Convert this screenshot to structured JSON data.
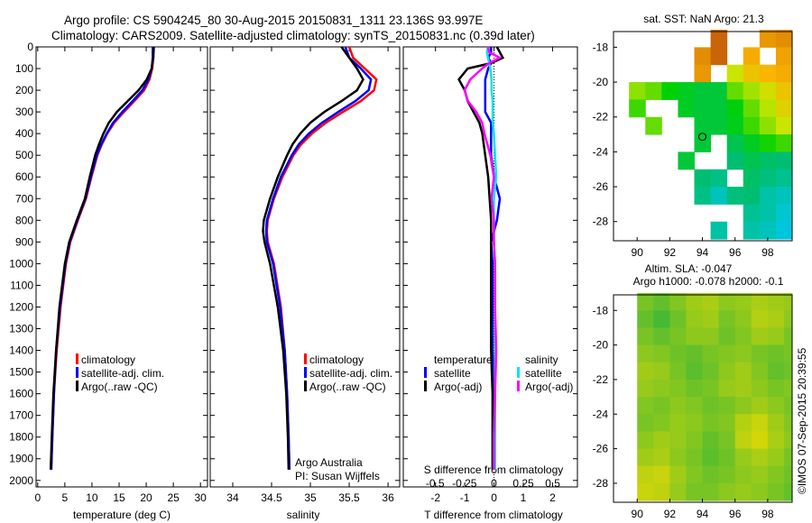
{
  "header": {
    "line1": "Argo profile: CS 5904245_80 30-Aug-2015 20150831_1311 23.136S 93.997E",
    "line2": "Climatology: CARS2009. Satellite-adjusted climatology: synTS_20150831.nc (0.39d later)"
  },
  "colors": {
    "climatology": "#ff0000",
    "satellite": "#0000ff",
    "argo": "#000000",
    "sal_satellite": "#00e5ee",
    "sal_argo": "#ff00ff"
  },
  "chart_data": [
    {
      "type": "line",
      "xlabel": "temperature (deg C)",
      "ylabel": "",
      "xlim": [
        -0.3,
        31.3
      ],
      "ylim": [
        2030,
        0
      ],
      "xticks": [
        0,
        5,
        10,
        15,
        20,
        25,
        30
      ],
      "yticks": [
        0,
        100,
        200,
        300,
        400,
        500,
        600,
        700,
        800,
        900,
        1000,
        1100,
        1200,
        1300,
        1400,
        1500,
        1600,
        1700,
        1800,
        1900,
        2000
      ],
      "depth": [
        0,
        50,
        100,
        150,
        200,
        250,
        300,
        350,
        400,
        450,
        500,
        600,
        700,
        800,
        900,
        1000,
        1200,
        1400,
        1600,
        1800,
        1950
      ],
      "series": [
        {
          "name": "climatology",
          "color": "#ff0000",
          "values": [
            21.3,
            21.3,
            21.1,
            20.6,
            19.6,
            17.8,
            15.9,
            14.1,
            12.8,
            11.8,
            11.0,
            9.9,
            8.9,
            7.4,
            6.0,
            5.2,
            4.2,
            3.5,
            3.0,
            2.7,
            2.5
          ]
        },
        {
          "name": "satellite-adj. clim.",
          "color": "#0000ff",
          "values": [
            21.2,
            21.2,
            21.0,
            20.4,
            19.3,
            17.5,
            15.6,
            13.9,
            12.7,
            11.7,
            10.9,
            9.8,
            8.8,
            7.3,
            5.9,
            5.1,
            4.1,
            3.4,
            3.0,
            2.7,
            2.5
          ]
        },
        {
          "name": "Argo(..raw -QC)",
          "color": "#000000",
          "values": [
            21.4,
            21.3,
            21.0,
            20.1,
            18.6,
            16.6,
            14.6,
            13.1,
            12.1,
            11.3,
            10.6,
            9.6,
            8.7,
            7.2,
            5.8,
            5.0,
            4.0,
            3.4,
            2.9,
            2.6,
            2.4
          ]
        }
      ]
    },
    {
      "type": "line",
      "xlabel": "salinity",
      "xlim": [
        33.71,
        36.15
      ],
      "ylim": [
        2030,
        0
      ],
      "xticks": [
        34,
        34.5,
        35,
        35.5,
        36
      ],
      "depth": [
        0,
        50,
        100,
        150,
        200,
        250,
        300,
        350,
        400,
        450,
        500,
        600,
        700,
        800,
        850,
        900,
        1000,
        1200,
        1400,
        1600,
        1800,
        1950
      ],
      "series": [
        {
          "name": "climatology",
          "color": "#ff0000",
          "values": [
            35.5,
            35.55,
            35.7,
            35.85,
            35.82,
            35.65,
            35.42,
            35.2,
            35.02,
            34.88,
            34.78,
            34.64,
            34.53,
            34.45,
            34.44,
            34.45,
            34.53,
            34.62,
            34.67,
            34.7,
            34.72,
            34.73
          ]
        },
        {
          "name": "satellite-adj. clim.",
          "color": "#0000ff",
          "values": [
            35.45,
            35.5,
            35.65,
            35.78,
            35.75,
            35.58,
            35.36,
            35.15,
            34.98,
            34.85,
            34.76,
            34.62,
            34.52,
            34.44,
            34.43,
            34.44,
            34.52,
            34.61,
            34.67,
            34.7,
            34.72,
            34.73
          ]
        },
        {
          "name": "Argo(..raw -QC)",
          "color": "#000000",
          "values": [
            35.4,
            35.5,
            35.6,
            35.68,
            35.6,
            35.4,
            35.18,
            35.0,
            34.87,
            34.77,
            34.7,
            34.58,
            34.48,
            34.4,
            34.39,
            34.41,
            34.48,
            34.58,
            34.65,
            34.69,
            34.71,
            34.72
          ]
        }
      ],
      "notes": [
        "Argo Australia",
        "PI: Susan Wijffels"
      ]
    },
    {
      "type": "line",
      "xlabel": "T difference from climatology",
      "x2label": "S difference from climatology",
      "xlim": [
        -3.1,
        2.85
      ],
      "x2lim": [
        -0.77,
        0.71
      ],
      "ylim": [
        2030,
        0
      ],
      "xticks": [
        -2,
        -1,
        0,
        1,
        2
      ],
      "x2ticks": [
        "-0.5",
        "-0.25",
        "0",
        "0.25",
        "0.5"
      ],
      "depth": [
        0,
        25,
        50,
        75,
        100,
        150,
        200,
        250,
        300,
        350,
        400,
        500,
        600,
        700,
        800,
        900,
        1000,
        1200,
        1400,
        1600,
        1800,
        1950
      ],
      "legend_titles": [
        "temperature",
        "salinity"
      ],
      "series": [
        {
          "name": "satellite",
          "group": "temperature",
          "axis": "T",
          "color": "#0000ff",
          "values": [
            -0.1,
            -0.1,
            -0.2,
            -0.1,
            -0.2,
            -0.3,
            -0.3,
            -0.3,
            -0.3,
            -0.1,
            -0.1,
            -0.1,
            0.0,
            0.2,
            0.1,
            -0.1,
            -0.05,
            -0.05,
            -0.05,
            0.0,
            0.0,
            0.0
          ]
        },
        {
          "name": "Argo(-adj)",
          "group": "temperature",
          "axis": "T",
          "color": "#000000",
          "values": [
            0.1,
            0.2,
            0.3,
            -0.1,
            -0.9,
            -1.2,
            -1.0,
            -0.9,
            -0.7,
            -0.5,
            -0.4,
            -0.3,
            -0.2,
            -0.15,
            -0.1,
            -0.1,
            -0.1,
            -0.1,
            -0.1,
            -0.05,
            -0.05,
            -0.05
          ]
        },
        {
          "name": "satellite",
          "group": "salinity",
          "axis": "S",
          "color": "#00e5ee",
          "values": [
            -0.05,
            -0.06,
            -0.05,
            -0.04,
            -0.03,
            -0.02,
            -0.02,
            -0.01,
            -0.01,
            -0.01,
            0.0,
            0.01,
            0.02,
            0.0,
            0.0,
            0.0,
            0.01,
            0.01,
            0.01,
            0.01,
            0.01,
            0.01
          ]
        },
        {
          "name": "Argo(-adj)",
          "group": "salinity",
          "axis": "S",
          "color": "#ff00ff",
          "values": [
            -0.05,
            -0.04,
            0.05,
            -0.04,
            -0.1,
            -0.2,
            -0.25,
            -0.22,
            -0.15,
            -0.1,
            -0.08,
            -0.03,
            0.0,
            -0.02,
            0.0,
            0.0,
            0.01,
            0.01,
            0.02,
            0.01,
            0.0,
            0.0
          ]
        }
      ]
    },
    {
      "type": "heatmap",
      "title": "sat. SST: NaN Argo: 21.3",
      "xlim": [
        88.55,
        99.5
      ],
      "ylim": [
        -29.1,
        -17.1
      ],
      "xticks": [
        90,
        92,
        94,
        96,
        98
      ],
      "yticks": [
        -18,
        -20,
        -22,
        -24,
        -26,
        -28
      ],
      "lon_edges": [
        89.5,
        90.5,
        91.5,
        92.5,
        93.5,
        94.5,
        95.5,
        96.5,
        97.5,
        98.5,
        99.5
      ],
      "lat_edges": [
        -17,
        -18,
        -19,
        -20,
        -21,
        -22,
        -23,
        -24,
        -25,
        -26,
        -27,
        -28,
        -29
      ],
      "vrange": [
        20.3,
        25.2
      ],
      "values": [
        [
          null,
          null,
          null,
          null,
          null,
          25.0,
          null,
          null,
          24.5,
          24.6
        ],
        [
          null,
          null,
          null,
          null,
          24.6,
          25.0,
          null,
          24.3,
          null,
          24.4
        ],
        [
          null,
          null,
          null,
          null,
          24.5,
          null,
          23.5,
          24.0,
          24.2,
          24.3
        ],
        [
          23.2,
          23.0,
          22.5,
          22.2,
          22.0,
          22.0,
          23.0,
          23.3,
          23.6,
          24.0
        ],
        [
          22.8,
          null,
          null,
          22.2,
          22.0,
          22.0,
          22.4,
          23.0,
          23.4,
          23.8
        ],
        [
          null,
          23.0,
          null,
          null,
          22.0,
          22.0,
          22.3,
          22.8,
          23.2,
          23.5
        ],
        [
          null,
          null,
          null,
          null,
          22.0,
          null,
          21.8,
          22.2,
          22.6,
          22.8
        ],
        [
          null,
          null,
          null,
          22.0,
          null,
          null,
          21.5,
          21.8,
          21.6,
          21.5
        ],
        [
          null,
          null,
          null,
          null,
          21.5,
          21.3,
          null,
          21.6,
          21.4,
          21.2
        ],
        [
          null,
          null,
          null,
          null,
          21.3,
          20.8,
          21.4,
          21.5,
          21.0,
          20.8
        ],
        [
          null,
          null,
          null,
          null,
          null,
          null,
          null,
          21.2,
          21.0,
          20.6
        ],
        [
          null,
          null,
          null,
          null,
          null,
          21.0,
          null,
          21.0,
          20.8,
          20.5
        ]
      ],
      "argo_position": [
        93.997,
        -23.136
      ]
    },
    {
      "type": "heatmap",
      "title1": "Altim. SLA: -0.047",
      "title2": "Argo h1000: -0.078 h2000: -0.1",
      "xlim": [
        88.55,
        99.5
      ],
      "ylim": [
        -29.1,
        -17.1
      ],
      "xticks": [
        90,
        92,
        94,
        96,
        98
      ],
      "yticks": [
        -18,
        -20,
        -22,
        -24,
        -26,
        -28
      ],
      "lon_edges": [
        90,
        91,
        92,
        93,
        94,
        95,
        96,
        97,
        98,
        99,
        99.5
      ],
      "lat_edges": [
        -17,
        -18,
        -19,
        -20,
        -21,
        -22,
        -23,
        -24,
        -25,
        -26,
        -27,
        -28,
        -29
      ],
      "vrange": [
        -0.1,
        0.1
      ],
      "values": [
        [
          -0.02,
          -0.04,
          -0.01,
          0.02,
          0.03,
          0.0,
          0.01,
          0.03,
          0.02,
          0.01
        ],
        [
          -0.04,
          -0.07,
          -0.03,
          0.01,
          0.02,
          -0.02,
          0.0,
          0.04,
          0.03,
          0.0
        ],
        [
          -0.02,
          -0.04,
          -0.02,
          0.0,
          0.0,
          -0.03,
          -0.01,
          0.02,
          0.01,
          -0.02
        ],
        [
          0.0,
          -0.01,
          -0.03,
          -0.04,
          -0.02,
          -0.01,
          0.0,
          -0.02,
          -0.03,
          -0.02
        ],
        [
          0.02,
          0.01,
          -0.02,
          -0.05,
          -0.03,
          0.0,
          0.02,
          -0.01,
          -0.04,
          -0.03
        ],
        [
          0.01,
          0.0,
          -0.01,
          -0.03,
          -0.02,
          0.01,
          0.02,
          0.0,
          -0.02,
          -0.01
        ],
        [
          -0.01,
          -0.02,
          0.0,
          -0.01,
          -0.03,
          -0.02,
          0.0,
          0.02,
          0.0,
          -0.02
        ],
        [
          -0.02,
          -0.01,
          0.01,
          0.0,
          -0.02,
          -0.01,
          0.04,
          0.06,
          0.02,
          -0.01
        ],
        [
          0.0,
          0.02,
          0.01,
          -0.01,
          -0.04,
          -0.02,
          0.05,
          0.07,
          0.03,
          0.0
        ],
        [
          0.02,
          0.03,
          0.0,
          -0.02,
          -0.05,
          -0.03,
          0.01,
          0.03,
          0.01,
          -0.02
        ],
        [
          0.05,
          0.06,
          0.02,
          -0.01,
          -0.03,
          -0.02,
          0.0,
          0.01,
          -0.01,
          -0.03
        ],
        [
          0.06,
          0.05,
          0.01,
          -0.02,
          -0.02,
          0.0,
          0.01,
          0.0,
          -0.02,
          -0.04
        ]
      ]
    }
  ],
  "footer": {
    "credit": "©IMOS 07-Sep-2015 20:39:55"
  }
}
